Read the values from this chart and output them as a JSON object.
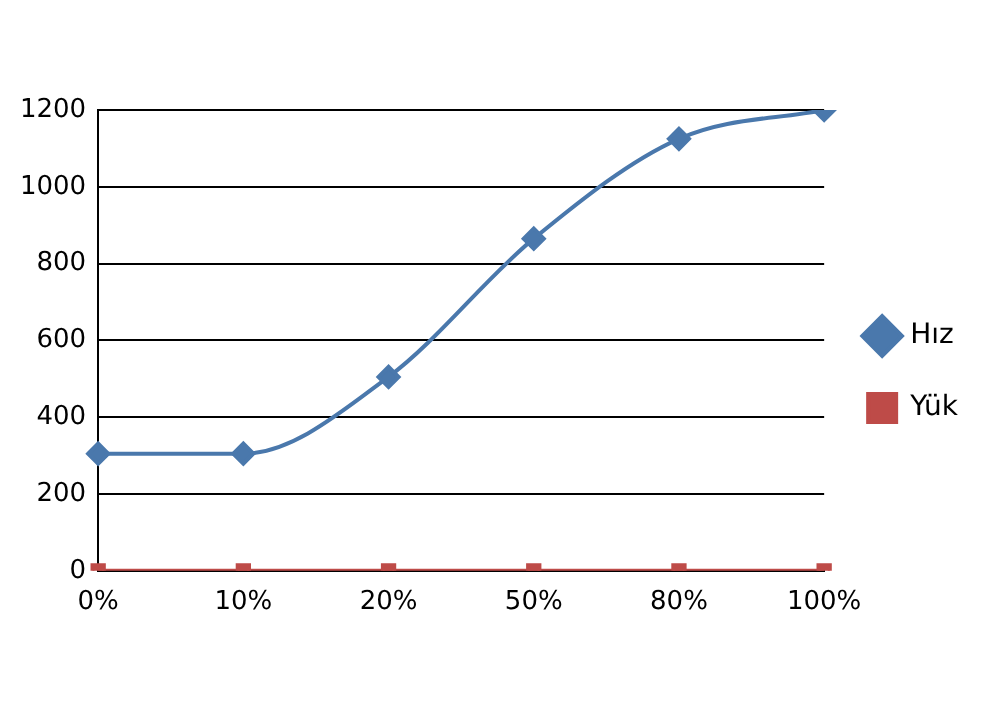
{
  "chart_data": {
    "type": "line",
    "categories": [
      "0%",
      "10%",
      "20%",
      "50%",
      "80%",
      "100%"
    ],
    "series": [
      {
        "name": "Hız",
        "color": "#4a78ac",
        "marker": "diamond",
        "values": [
          305,
          305,
          505,
          865,
          1125,
          1200
        ]
      },
      {
        "name": "Yük",
        "color": "#be4b48",
        "marker": "square",
        "values": [
          0,
          0,
          0,
          0,
          0,
          0
        ]
      }
    ],
    "ylim": [
      0,
      1200
    ],
    "yticks": [
      0,
      200,
      400,
      600,
      800,
      1000,
      1200
    ],
    "grid": "y",
    "legend": "right"
  }
}
